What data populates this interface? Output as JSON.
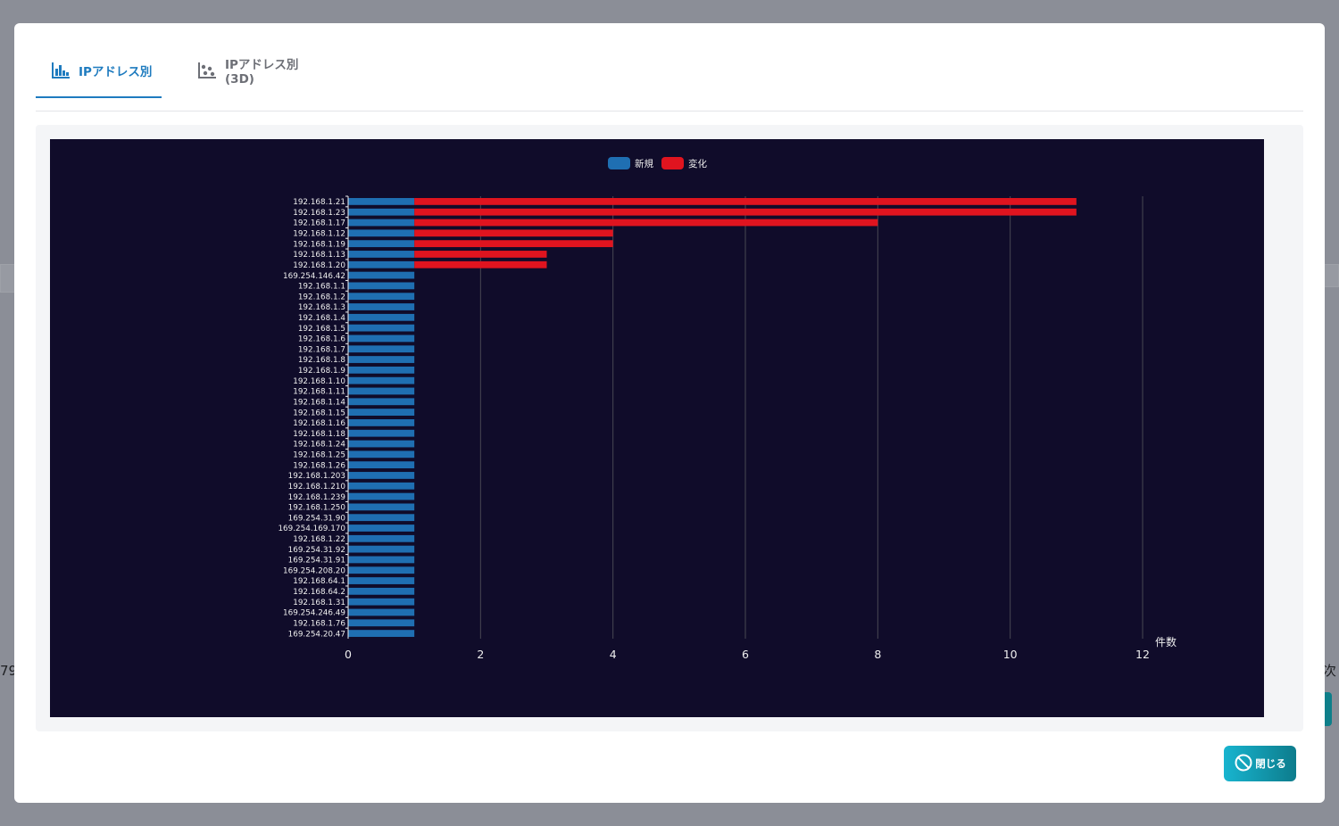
{
  "background": {
    "left_fragment": "79",
    "right_fragment": "次"
  },
  "tabs": [
    {
      "label": "IPアドレス別",
      "icon": "bar-chart-icon",
      "active": true
    },
    {
      "label": "IPアドレス別(3D)",
      "icon": "scatter-chart-icon",
      "active": false
    }
  ],
  "footer": {
    "close_label": "閉じる",
    "close_icon": "prohibited-circle-icon"
  },
  "colors": {
    "chart_background": "#100c2a",
    "series_new": "#1f6fb2",
    "series_change": "#e0141f",
    "accent": "#1e7bbf",
    "close_button_start": "#18b4cf",
    "close_button_end": "#0d7c8c"
  },
  "chart_data": {
    "type": "bar",
    "orientation": "horizontal",
    "stacked": true,
    "title": "",
    "xlabel": "件数",
    "ylabel": "",
    "xlim": [
      0,
      12
    ],
    "xticks": [
      0,
      2,
      4,
      6,
      8,
      10,
      12
    ],
    "grid": "vertical",
    "legend_position": "top-center",
    "categories": [
      "192.168.1.21",
      "192.168.1.23",
      "192.168.1.17",
      "192.168.1.12",
      "192.168.1.19",
      "192.168.1.13",
      "192.168.1.20",
      "169.254.146.42",
      "192.168.1.1",
      "192.168.1.2",
      "192.168.1.3",
      "192.168.1.4",
      "192.168.1.5",
      "192.168.1.6",
      "192.168.1.7",
      "192.168.1.8",
      "192.168.1.9",
      "192.168.1.10",
      "192.168.1.11",
      "192.168.1.14",
      "192.168.1.15",
      "192.168.1.16",
      "192.168.1.18",
      "192.168.1.24",
      "192.168.1.25",
      "192.168.1.26",
      "192.168.1.203",
      "192.168.1.210",
      "192.168.1.239",
      "192.168.1.250",
      "169.254.31.90",
      "169.254.169.170",
      "192.168.1.22",
      "169.254.31.92",
      "169.254.31.91",
      "169.254.208.20",
      "192.168.64.1",
      "192.168.64.2",
      "192.168.1.31",
      "169.254.246.49",
      "192.168.1.76",
      "169.254.20.47"
    ],
    "series": [
      {
        "name": "新規",
        "color": "#1f6fb2",
        "values": [
          1,
          1,
          1,
          1,
          1,
          1,
          1,
          1,
          1,
          1,
          1,
          1,
          1,
          1,
          1,
          1,
          1,
          1,
          1,
          1,
          1,
          1,
          1,
          1,
          1,
          1,
          1,
          1,
          1,
          1,
          1,
          1,
          1,
          1,
          1,
          1,
          1,
          1,
          1,
          1,
          1,
          1
        ]
      },
      {
        "name": "変化",
        "color": "#e0141f",
        "values": [
          10,
          10,
          7,
          3,
          3,
          2,
          2,
          0,
          0,
          0,
          0,
          0,
          0,
          0,
          0,
          0,
          0,
          0,
          0,
          0,
          0,
          0,
          0,
          0,
          0,
          0,
          0,
          0,
          0,
          0,
          0,
          0,
          0,
          0,
          0,
          0,
          0,
          0,
          0,
          0,
          0,
          0
        ]
      }
    ]
  }
}
